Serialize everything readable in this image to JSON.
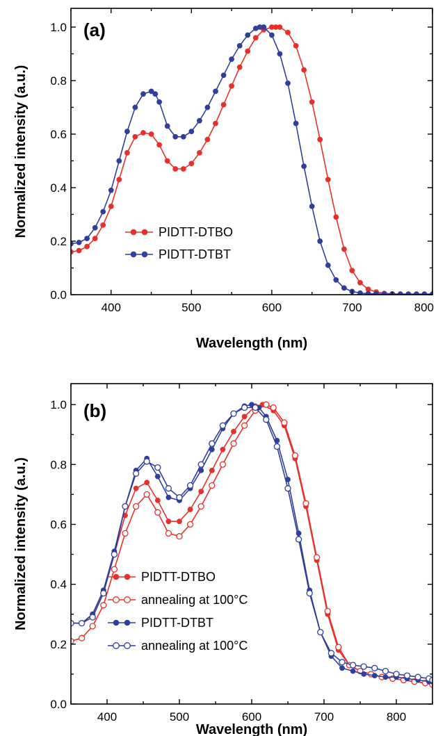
{
  "colors": {
    "red": "#e8302b",
    "blue": "#2f3f9c",
    "axis": "#000000"
  },
  "chart_data": [
    {
      "panel": "(a)",
      "type": "line",
      "xlabel": "Wavelength (nm)",
      "ylabel": "Normalized intensity (a.u.)",
      "xlim": [
        350,
        800
      ],
      "ylim": [
        0,
        1.07
      ],
      "xticks": [
        400,
        500,
        600,
        700,
        800
      ],
      "xtick_labels": [
        "400",
        "500",
        "600",
        "700",
        "800"
      ],
      "yticks": [
        0,
        0.2,
        0.4,
        0.6,
        0.8,
        1.0
      ],
      "ytick_labels": [
        "0.0",
        "0.2",
        "0.4",
        "0.6",
        "0.8",
        "1.0"
      ],
      "legend_position": "lower-left",
      "series": [
        {
          "name": "PIDTT-DTBO",
          "color": "#e8302b",
          "marker": "filled-circle",
          "x": [
            350,
            360,
            370,
            380,
            390,
            400,
            410,
            420,
            430,
            440,
            450,
            460,
            470,
            480,
            490,
            500,
            510,
            520,
            530,
            540,
            550,
            560,
            570,
            580,
            590,
            600,
            605,
            610,
            620,
            630,
            640,
            650,
            660,
            670,
            680,
            690,
            700,
            710,
            720,
            730,
            740,
            750,
            760,
            770,
            780,
            790,
            800
          ],
          "y": [
            0.16,
            0.165,
            0.18,
            0.21,
            0.26,
            0.33,
            0.43,
            0.53,
            0.59,
            0.605,
            0.6,
            0.56,
            0.5,
            0.47,
            0.47,
            0.49,
            0.53,
            0.58,
            0.64,
            0.71,
            0.78,
            0.85,
            0.91,
            0.96,
            0.99,
            1.0,
            1.0,
            1.0,
            0.98,
            0.93,
            0.84,
            0.72,
            0.58,
            0.43,
            0.29,
            0.17,
            0.09,
            0.045,
            0.02,
            0.01,
            0.005,
            0.003,
            0.002,
            0.002,
            0.002,
            0.002,
            0.002
          ]
        },
        {
          "name": "PIDTT-DTBT",
          "color": "#2f3f9c",
          "marker": "filled-circle",
          "x": [
            350,
            360,
            370,
            380,
            390,
            400,
            410,
            420,
            430,
            440,
            450,
            455,
            460,
            470,
            480,
            490,
            500,
            510,
            520,
            530,
            540,
            550,
            560,
            570,
            580,
            585,
            590,
            600,
            610,
            620,
            630,
            640,
            650,
            660,
            670,
            680,
            690,
            700,
            710,
            720,
            730,
            740,
            750,
            760,
            770,
            780,
            790,
            800
          ],
          "y": [
            0.19,
            0.195,
            0.21,
            0.25,
            0.31,
            0.39,
            0.5,
            0.61,
            0.7,
            0.75,
            0.76,
            0.75,
            0.72,
            0.63,
            0.59,
            0.59,
            0.61,
            0.65,
            0.7,
            0.76,
            0.82,
            0.88,
            0.93,
            0.97,
            0.995,
            1.0,
            1.0,
            0.97,
            0.9,
            0.79,
            0.64,
            0.48,
            0.33,
            0.2,
            0.11,
            0.055,
            0.025,
            0.012,
            0.006,
            0.004,
            0.003,
            0.002,
            0.002,
            0.002,
            0.002,
            0.002,
            0.002,
            0.002
          ]
        }
      ]
    },
    {
      "panel": "(b)",
      "type": "line",
      "xlabel": "Wavelength (nm)",
      "ylabel": "Normalized intensity (a.u.)",
      "xlim": [
        350,
        850
      ],
      "ylim": [
        0,
        1.07
      ],
      "xticks": [
        400,
        500,
        600,
        700,
        800
      ],
      "xtick_labels": [
        "400",
        "500",
        "600",
        "700",
        "800"
      ],
      "yticks": [
        0,
        0.2,
        0.4,
        0.6,
        0.8,
        1.0
      ],
      "ytick_labels": [
        "0.0",
        "0.2",
        "0.4",
        "0.6",
        "0.8",
        "1.0"
      ],
      "legend_position": "lower-left",
      "series": [
        {
          "name": "PIDTT-DTBO",
          "color": "#e8302b",
          "marker": "filled-circle",
          "x": [
            350,
            365,
            380,
            395,
            410,
            425,
            440,
            455,
            470,
            485,
            500,
            515,
            530,
            545,
            560,
            575,
            590,
            605,
            615,
            630,
            645,
            660,
            675,
            690,
            705,
            720,
            735,
            750,
            765,
            780,
            795,
            810,
            825,
            840,
            850
          ],
          "y": [
            0.27,
            0.27,
            0.3,
            0.38,
            0.5,
            0.63,
            0.72,
            0.74,
            0.68,
            0.61,
            0.61,
            0.65,
            0.71,
            0.78,
            0.85,
            0.91,
            0.96,
            0.995,
            1.0,
            0.98,
            0.93,
            0.82,
            0.66,
            0.48,
            0.3,
            0.18,
            0.13,
            0.11,
            0.1,
            0.09,
            0.085,
            0.08,
            0.075,
            0.07,
            0.065
          ]
        },
        {
          "name": "annealing at 100°C",
          "color": "#e8302b",
          "marker": "open-circle",
          "x": [
            350,
            365,
            380,
            395,
            410,
            425,
            440,
            455,
            470,
            485,
            500,
            515,
            530,
            545,
            560,
            575,
            590,
            605,
            620,
            630,
            645,
            660,
            675,
            690,
            705,
            720,
            735,
            750,
            765,
            780,
            795,
            810,
            825,
            840,
            850
          ],
          "y": [
            0.21,
            0.22,
            0.26,
            0.33,
            0.45,
            0.57,
            0.66,
            0.7,
            0.64,
            0.57,
            0.56,
            0.6,
            0.66,
            0.73,
            0.8,
            0.87,
            0.93,
            0.98,
            1.0,
            0.99,
            0.94,
            0.83,
            0.67,
            0.49,
            0.31,
            0.19,
            0.13,
            0.11,
            0.1,
            0.09,
            0.085,
            0.08,
            0.075,
            0.07,
            0.065
          ]
        },
        {
          "name": "PIDTT-DTBT",
          "color": "#2f3f9c",
          "marker": "filled-circle",
          "x": [
            350,
            365,
            380,
            395,
            410,
            425,
            440,
            455,
            470,
            485,
            500,
            515,
            530,
            545,
            560,
            575,
            590,
            600,
            610,
            620,
            635,
            650,
            665,
            680,
            695,
            710,
            725,
            740,
            755,
            770,
            785,
            800,
            815,
            830,
            845,
            850
          ],
          "y": [
            0.27,
            0.27,
            0.3,
            0.38,
            0.51,
            0.66,
            0.78,
            0.82,
            0.76,
            0.69,
            0.68,
            0.72,
            0.78,
            0.85,
            0.92,
            0.97,
            0.995,
            1.0,
            0.99,
            0.96,
            0.88,
            0.75,
            0.57,
            0.38,
            0.24,
            0.16,
            0.12,
            0.11,
            0.1,
            0.095,
            0.09,
            0.09,
            0.085,
            0.08,
            0.075,
            0.075
          ]
        },
        {
          "name": "annealing at 100°C",
          "color": "#2f3f9c",
          "marker": "open-circle",
          "x": [
            350,
            365,
            380,
            395,
            410,
            425,
            440,
            455,
            470,
            485,
            500,
            515,
            530,
            545,
            560,
            575,
            590,
            605,
            620,
            635,
            650,
            665,
            680,
            695,
            710,
            725,
            740,
            755,
            770,
            785,
            800,
            815,
            830,
            845,
            850
          ],
          "y": [
            0.27,
            0.27,
            0.29,
            0.37,
            0.5,
            0.66,
            0.77,
            0.81,
            0.79,
            0.72,
            0.69,
            0.73,
            0.8,
            0.87,
            0.93,
            0.97,
            0.99,
            0.99,
            0.95,
            0.86,
            0.72,
            0.55,
            0.37,
            0.24,
            0.17,
            0.14,
            0.13,
            0.125,
            0.12,
            0.11,
            0.1,
            0.095,
            0.09,
            0.085,
            0.08
          ]
        }
      ]
    }
  ]
}
